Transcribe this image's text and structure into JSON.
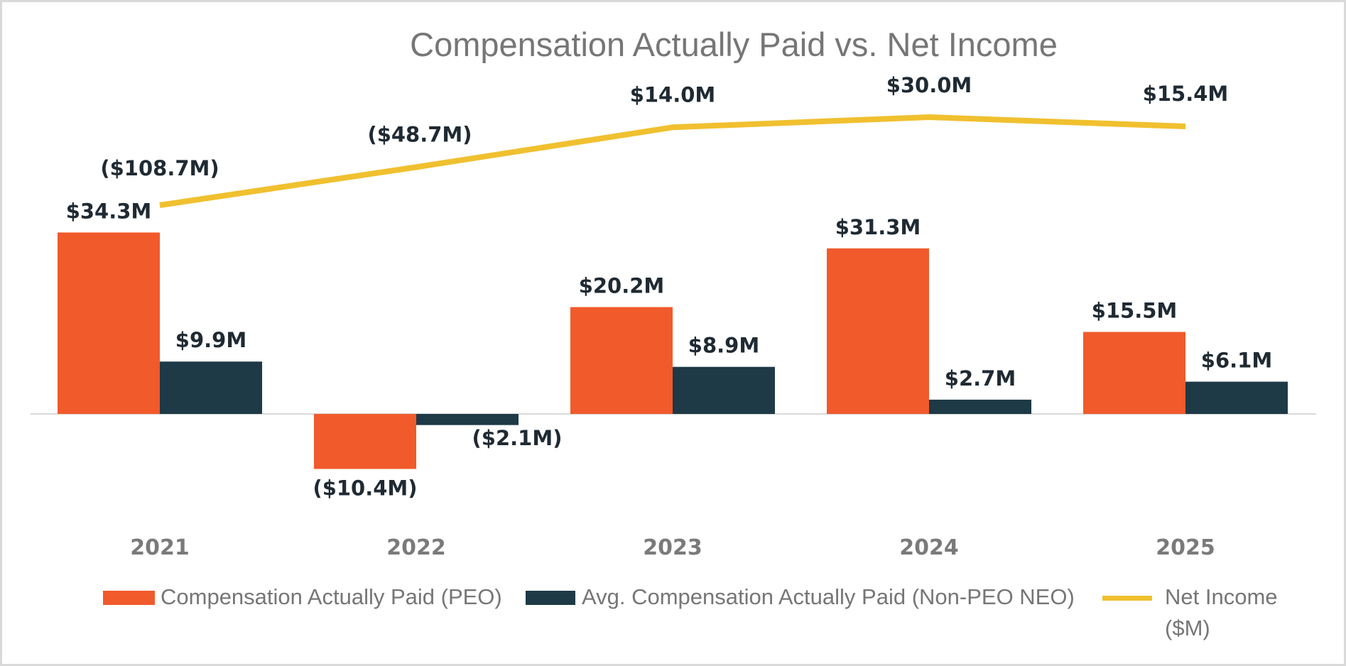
{
  "chart_data": {
    "type": "bar",
    "title": "Compensation Actually Paid vs. Net Income",
    "categories": [
      "2021",
      "2022",
      "2023",
      "2024",
      "2025"
    ],
    "series": [
      {
        "name": "Compensation Actually Paid (PEO)",
        "kind": "bar",
        "color": "#f15a2b",
        "values": [
          34.3,
          -10.4,
          20.2,
          31.3,
          15.5
        ],
        "labels": [
          "$34.3M",
          "($10.4M)",
          "$20.2M",
          "$31.3M",
          "$15.5M"
        ]
      },
      {
        "name": "Avg. Compensation Actually Paid (Non-PEO NEO)",
        "kind": "bar",
        "color": "#1d3a46",
        "values": [
          9.9,
          -2.1,
          8.9,
          2.7,
          6.1
        ],
        "labels": [
          "$9.9M",
          "($2.1M)",
          "$8.9M",
          "$2.7M",
          "$6.1M"
        ]
      },
      {
        "name": "Net Income ($M)",
        "kind": "line",
        "color": "#f0c02f",
        "values": [
          -108.7,
          -48.7,
          14.0,
          30.0,
          15.4
        ],
        "labels": [
          "($108.7M)",
          "($48.7M)",
          "$14.0M",
          "$30.0M",
          "$15.4M"
        ]
      }
    ],
    "legend_position": "bottom",
    "grid": false
  }
}
